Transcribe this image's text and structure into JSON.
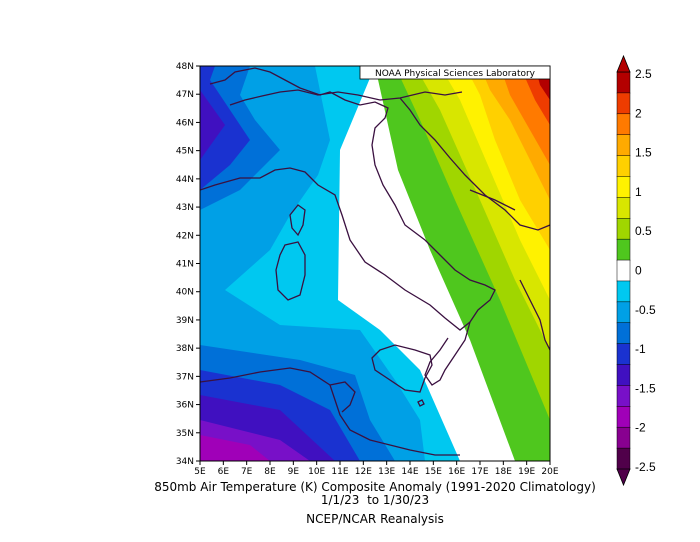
{
  "map": {
    "credit": "NOAA Physical Sciences Laboratory",
    "lat_labels": [
      "48N",
      "47N",
      "46N",
      "45N",
      "44N",
      "43N",
      "42N",
      "41N",
      "40N",
      "39N",
      "38N",
      "37N",
      "36N",
      "35N",
      "34N"
    ],
    "lon_labels": [
      "5E",
      "6E",
      "7E",
      "8E",
      "9E",
      "10E",
      "11E",
      "12E",
      "13E",
      "14E",
      "15E",
      "16E",
      "17E",
      "18E",
      "19E",
      "20E"
    ],
    "lat_range": [
      34,
      48
    ],
    "lon_range": [
      5,
      20
    ]
  },
  "colorbar": {
    "labels": [
      "2.5",
      "2",
      "1.5",
      "1",
      "0.5",
      "0",
      "-0.5",
      "-1",
      "-1.5",
      "-2",
      "-2.5"
    ],
    "colors": [
      "#b30000",
      "#ee3c00",
      "#ff7a00",
      "#ffaa00",
      "#ffd000",
      "#fff200",
      "#d8e600",
      "#a0d600",
      "#4fc71e",
      "#ffffff",
      "#00c8f0",
      "#00a0e6",
      "#0070d8",
      "#1a32d0",
      "#4010c0",
      "#7810c8",
      "#a000b8",
      "#880090",
      "#50004a"
    ],
    "value_range": [
      -2.5,
      2.5
    ]
  },
  "caption": {
    "title": "850mb Air Temperature (K) Composite Anomaly (1991-2020 Climatology)",
    "dates": "1/1/23  to 1/30/23",
    "source": "NCEP/NCAR Reanalysis"
  }
}
